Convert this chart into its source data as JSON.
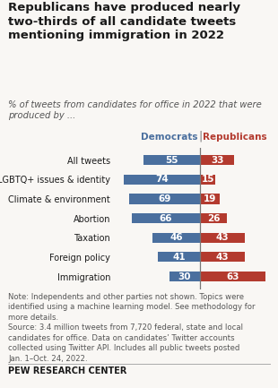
{
  "title": "Republicans have produced nearly\ntwo-thirds of all candidate tweets\nmentioning immigration in 2022",
  "subtitle": "% of tweets from candidates for office in 2022 that were\nproduced by ...",
  "categories": [
    "All tweets",
    "LGBTQ+ issues & identity",
    "Climate & environment",
    "Abortion",
    "Taxation",
    "Foreign policy",
    "Immigration"
  ],
  "dem_values": [
    55,
    74,
    69,
    66,
    46,
    41,
    30
  ],
  "rep_values": [
    33,
    15,
    19,
    26,
    43,
    43,
    63
  ],
  "dem_color": "#4a6f9e",
  "rep_color": "#b33a2e",
  "dem_label": "Democrats",
  "rep_label": "Republicans",
  "note_text": "Note: Independents and other parties not shown. Topics were\nidentified using a machine learning model. See methodology for\nmore details.\nSource: 3.4 million tweets from 7,720 federal, state and local\ncandidates for office. Data on candidates’ Twitter accounts\ncollected using Twitter API. Includes all public tweets posted\nJan. 1–Oct. 24, 2022.",
  "footer": "PEW RESEARCH CENTER",
  "background_color": "#f9f7f4",
  "bar_height": 0.52,
  "divider_color": "#777777",
  "title_color": "#1a1a1a",
  "subtitle_color": "#555555",
  "note_color": "#555555"
}
